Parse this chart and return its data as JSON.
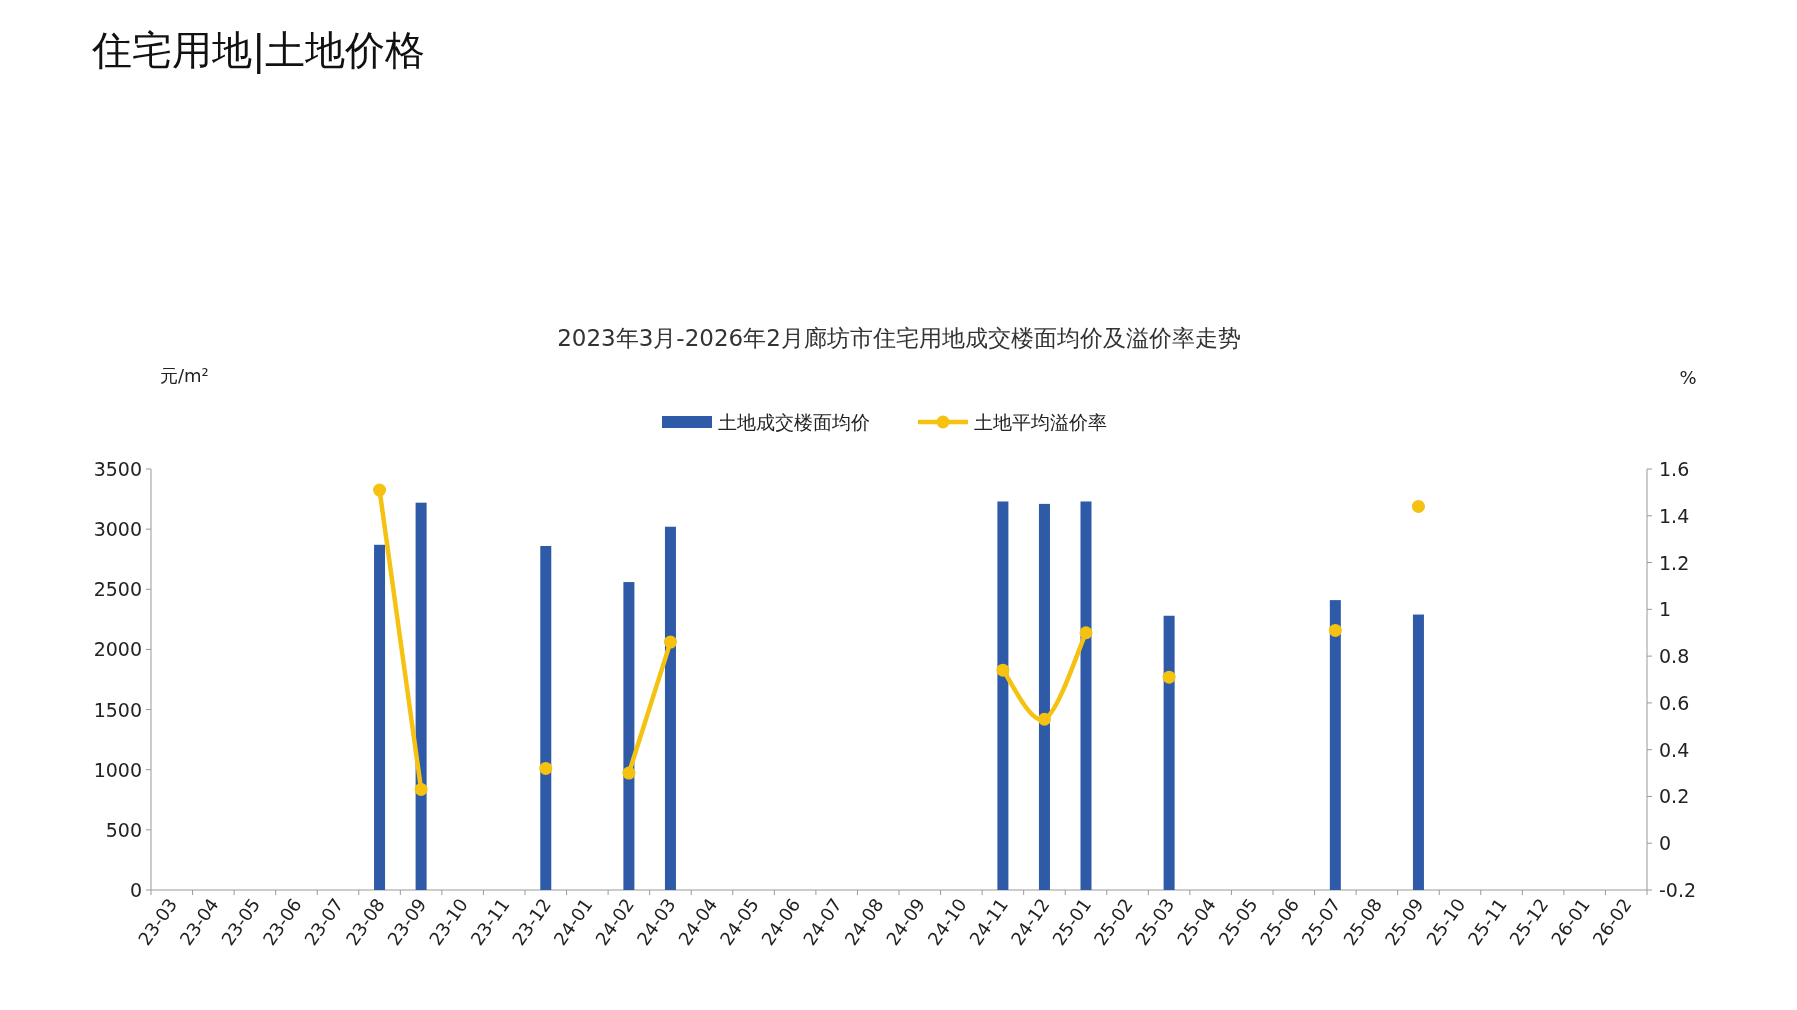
{
  "chart_data": {
    "type": "bar",
    "title": "住宅用地|土地价格",
    "subtitle": "2023年3月-2026年2月廊坊市住宅用地成交楼面均价及溢价率走势",
    "ylabel": "元/m²",
    "y2label": "%",
    "categories": [
      "23-03",
      "23-04",
      "23-05",
      "23-06",
      "23-07",
      "23-08",
      "23-09",
      "23-10",
      "23-11",
      "23-12",
      "24-01",
      "24-02",
      "24-03",
      "24-04",
      "24-05",
      "24-06",
      "24-07",
      "24-08",
      "24-09",
      "24-10",
      "24-11",
      "24-12",
      "25-01",
      "25-02",
      "25-03",
      "25-04",
      "25-05",
      "25-06",
      "25-07",
      "25-08",
      "25-09",
      "25-10",
      "25-11",
      "25-12",
      "26-01",
      "26-02"
    ],
    "series": [
      {
        "name": "土地成交楼面均价",
        "color": "#2e5aa8",
        "values": [
          null,
          null,
          null,
          null,
          null,
          2870,
          3220,
          null,
          null,
          2860,
          null,
          2560,
          3020,
          null,
          null,
          null,
          null,
          null,
          null,
          null,
          3230,
          3210,
          3230,
          null,
          2280,
          null,
          null,
          null,
          2410,
          null,
          2290,
          null,
          null,
          null,
          null,
          null
        ]
      },
      {
        "name": "土地平均溢价率",
        "type": "line",
        "axis": "y2",
        "color": "#f5c211",
        "values": [
          null,
          null,
          null,
          null,
          null,
          1.51,
          0.23,
          null,
          null,
          0.32,
          null,
          0.3,
          0.86,
          null,
          null,
          null,
          null,
          null,
          null,
          null,
          0.74,
          0.53,
          0.9,
          null,
          0.71,
          null,
          null,
          null,
          0.91,
          null,
          1.44,
          null,
          null,
          null,
          null,
          null
        ]
      }
    ],
    "ylim": [
      0,
      3500
    ],
    "yticks": [
      0,
      500,
      1000,
      1500,
      2000,
      2500,
      3000,
      3500
    ],
    "y2lim": [
      -0.2,
      1.6
    ],
    "y2ticks": [
      -0.2,
      0,
      0.2,
      0.4,
      0.6,
      0.8,
      1,
      1.2,
      1.4,
      1.6
    ],
    "marker": "circle",
    "legend": "top"
  }
}
